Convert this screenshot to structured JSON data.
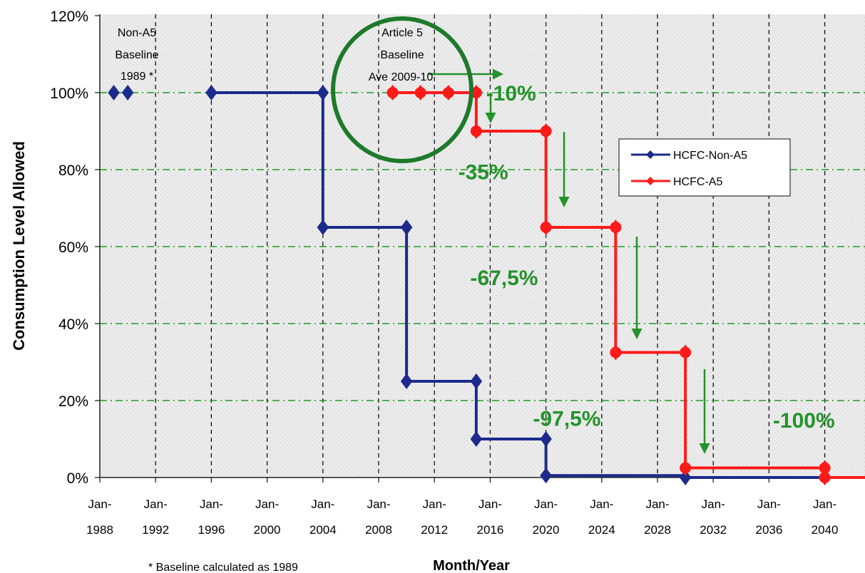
{
  "chart_data": {
    "type": "line",
    "title": "",
    "xlabel": "Month/Year",
    "ylabel": "Consumption Level Allowed",
    "x_tick_labels": [
      [
        "Jan-",
        "1988"
      ],
      [
        "Jan-",
        "1992"
      ],
      [
        "Jan-",
        "1996"
      ],
      [
        "Jan-",
        "2000"
      ],
      [
        "Jan-",
        "2004"
      ],
      [
        "Jan-",
        "2008"
      ],
      [
        "Jan-",
        "2012"
      ],
      [
        "Jan-",
        "2016"
      ],
      [
        "Jan-",
        "2020"
      ],
      [
        "Jan-",
        "2024"
      ],
      [
        "Jan-",
        "2028"
      ],
      [
        "Jan-",
        "2032"
      ],
      [
        "Jan-",
        "2036"
      ],
      [
        "Jan-",
        "2040"
      ]
    ],
    "x_tick_years": [
      1988,
      1992,
      1996,
      2000,
      2004,
      2008,
      2012,
      2016,
      2020,
      2024,
      2028,
      2032,
      2036,
      2040
    ],
    "y_tick_labels": [
      "0%",
      "20%",
      "40%",
      "60%",
      "80%",
      "100%",
      "120%"
    ],
    "y_tick_values": [
      0,
      20,
      40,
      60,
      80,
      100,
      120
    ],
    "xlim": [
      1988,
      2043
    ],
    "ylim": [
      0,
      120
    ],
    "grid": {
      "vertical": "dashed black",
      "horizontal": "dash-dot green"
    },
    "legend_position": "right",
    "series": [
      {
        "name": "HCFC-Non-A5",
        "color": "#1c2a8c",
        "style": "step",
        "points": [
          [
            1989,
            100
          ],
          [
            1990,
            100
          ]
        ],
        "step_points": [
          [
            1996,
            100
          ],
          [
            2004,
            100
          ],
          [
            2004,
            65
          ],
          [
            2010,
            65
          ],
          [
            2010,
            25
          ],
          [
            2015,
            25
          ],
          [
            2015,
            10
          ],
          [
            2020,
            10
          ],
          [
            2020,
            0.5
          ],
          [
            2030,
            0.5
          ],
          [
            2030,
            0
          ],
          [
            2040,
            0
          ]
        ],
        "markers": [
          [
            1989,
            100
          ],
          [
            1990,
            100
          ],
          [
            1996,
            100
          ],
          [
            2004,
            100
          ],
          [
            2004,
            65
          ],
          [
            2010,
            65
          ],
          [
            2010,
            25
          ],
          [
            2015,
            25
          ],
          [
            2015,
            10
          ],
          [
            2020,
            10
          ],
          [
            2020,
            0.5
          ],
          [
            2030,
            0
          ]
        ]
      },
      {
        "name": "HCFC-A5",
        "color": "#ff1a1a",
        "style": "step",
        "step_points": [
          [
            2009,
            100
          ],
          [
            2015,
            100
          ],
          [
            2015,
            90
          ],
          [
            2020,
            90
          ],
          [
            2020,
            65
          ],
          [
            2025,
            65
          ],
          [
            2025,
            32.5
          ],
          [
            2030,
            32.5
          ],
          [
            2030,
            2.5
          ],
          [
            2040,
            2.5
          ],
          [
            2040,
            0
          ],
          [
            2043,
            0
          ]
        ],
        "markers": [
          [
            2009,
            100
          ],
          [
            2011,
            100
          ],
          [
            2013,
            100
          ],
          [
            2015,
            100
          ],
          [
            2015,
            90
          ],
          [
            2020,
            90
          ],
          [
            2020,
            65
          ],
          [
            2025,
            65
          ],
          [
            2025,
            32.5
          ],
          [
            2030,
            32.5
          ],
          [
            2030,
            2.5
          ],
          [
            2040,
            2.5
          ],
          [
            2040,
            0
          ]
        ]
      }
    ],
    "annotations": {
      "non_a5_baseline": [
        "Non-A5",
        "Baseline",
        "1989 *"
      ],
      "article5_baseline": [
        "Article 5",
        "Baseline",
        "Ave 2009-10"
      ],
      "reductions": [
        {
          "text": "-10%",
          "x": 2017.5,
          "y": 100
        },
        {
          "text": "-35%",
          "x": 2015.5,
          "y": 79.5
        },
        {
          "text": "-67,5%",
          "x": 2017,
          "y": 52
        },
        {
          "text": "-97,5%",
          "x": 2021.5,
          "y": 15.5
        },
        {
          "text": "-100%",
          "x": 2038.5,
          "y": 15
        }
      ],
      "footnote": "* Baseline calculated as 1989"
    },
    "colors": {
      "annotation_green": "#23932a",
      "circle_green": "#1d7a2a",
      "grid_green": "#1f9a1f"
    }
  }
}
